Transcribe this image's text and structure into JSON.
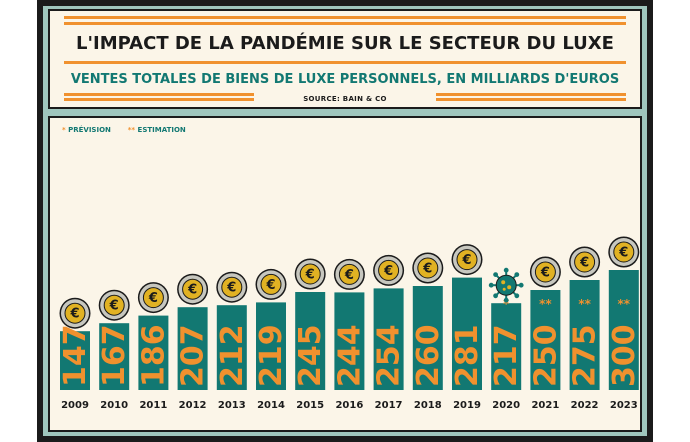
{
  "header": {
    "title": "L'IMPACT DE LA PANDÉMIE SUR LE SECTEUR DU LUXE",
    "subtitle": "VENTES TOTALES DE BIENS DE LUXE PERSONNELS, EN MILLIARDS D'EUROS",
    "source": "SOURCE: BAIN & CO"
  },
  "legend": {
    "forecast_marker": "*",
    "forecast_label": "PRÉVISION",
    "estimate_marker": "**",
    "estimate_label": "ESTIMATION"
  },
  "colors": {
    "bar": "#127872",
    "value_text": "#f0912e",
    "coin_gold": "#e1b223",
    "coin_rim": "#c7c7bf",
    "virus": "#127872",
    "background": "#fbf5e8",
    "frame": "#9fc6bd"
  },
  "chart_data": {
    "type": "bar",
    "title": "VENTES TOTALES DE BIENS DE LUXE PERSONNELS, EN MILLIARDS D'EUROS",
    "categories": [
      "2009",
      "2010",
      "2011",
      "2012",
      "2013",
      "2014",
      "2015",
      "2016",
      "2017",
      "2018",
      "2019",
      "2020",
      "2021",
      "2022",
      "2023"
    ],
    "values": [
      147,
      167,
      186,
      207,
      212,
      219,
      245,
      244,
      254,
      260,
      281,
      217,
      250,
      275,
      300
    ],
    "markers": [
      "",
      "",
      "",
      "",
      "",
      "",
      "",
      "",
      "",
      "",
      "",
      "*",
      "**",
      "**",
      "**"
    ],
    "icons": [
      "euro-coin",
      "euro-coin",
      "euro-coin",
      "euro-coin",
      "euro-coin",
      "euro-coin",
      "euro-coin",
      "euro-coin",
      "euro-coin",
      "euro-coin",
      "euro-coin",
      "virus",
      "euro-coin",
      "euro-coin",
      "euro-coin"
    ],
    "data_labels": true,
    "grid": false,
    "legend_position": "top-left"
  }
}
